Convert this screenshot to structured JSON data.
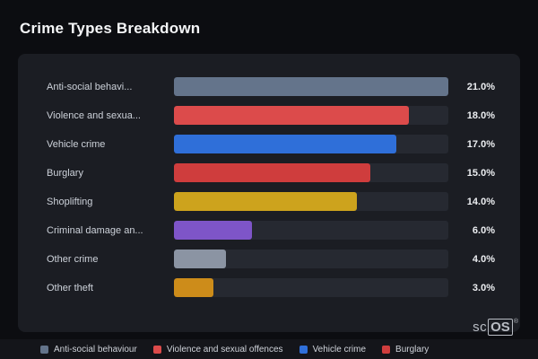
{
  "title": "Crime Types Breakdown",
  "brand": {
    "prefix": "sc",
    "box": "OS",
    "reg": "®"
  },
  "chart_data": {
    "type": "bar",
    "orientation": "horizontal",
    "title": "Crime Types Breakdown",
    "xlabel": "",
    "ylabel": "",
    "xlim": [
      0,
      21
    ],
    "grid": false,
    "legend_position": "bottom",
    "categories": [
      "Anti-social behavi...",
      "Violence and sexua...",
      "Vehicle crime",
      "Burglary",
      "Shoplifting",
      "Criminal damage an...",
      "Other crime",
      "Other theft"
    ],
    "values": [
      21,
      18,
      17,
      15,
      14,
      6,
      4,
      3
    ],
    "value_labels": [
      "21.0%",
      "18.0%",
      "17.0%",
      "15.0%",
      "14.0%",
      "6.0%",
      "4.0%",
      "3.0%"
    ],
    "bar_colors": [
      "#64748b",
      "#dc4b4b",
      "#2f6fd9",
      "#cf3d3d",
      "#cda31d",
      "#7e55c8",
      "#8b94a3",
      "#cd8c1a"
    ],
    "track_color": "#262931",
    "legend": [
      {
        "label": "Anti-social behaviour",
        "color": "#64748b"
      },
      {
        "label": "Violence and sexual offences",
        "color": "#dc4b4b"
      },
      {
        "label": "Vehicle crime",
        "color": "#2f6fd9"
      },
      {
        "label": "Burglary",
        "color": "#cf3d3d"
      }
    ]
  }
}
